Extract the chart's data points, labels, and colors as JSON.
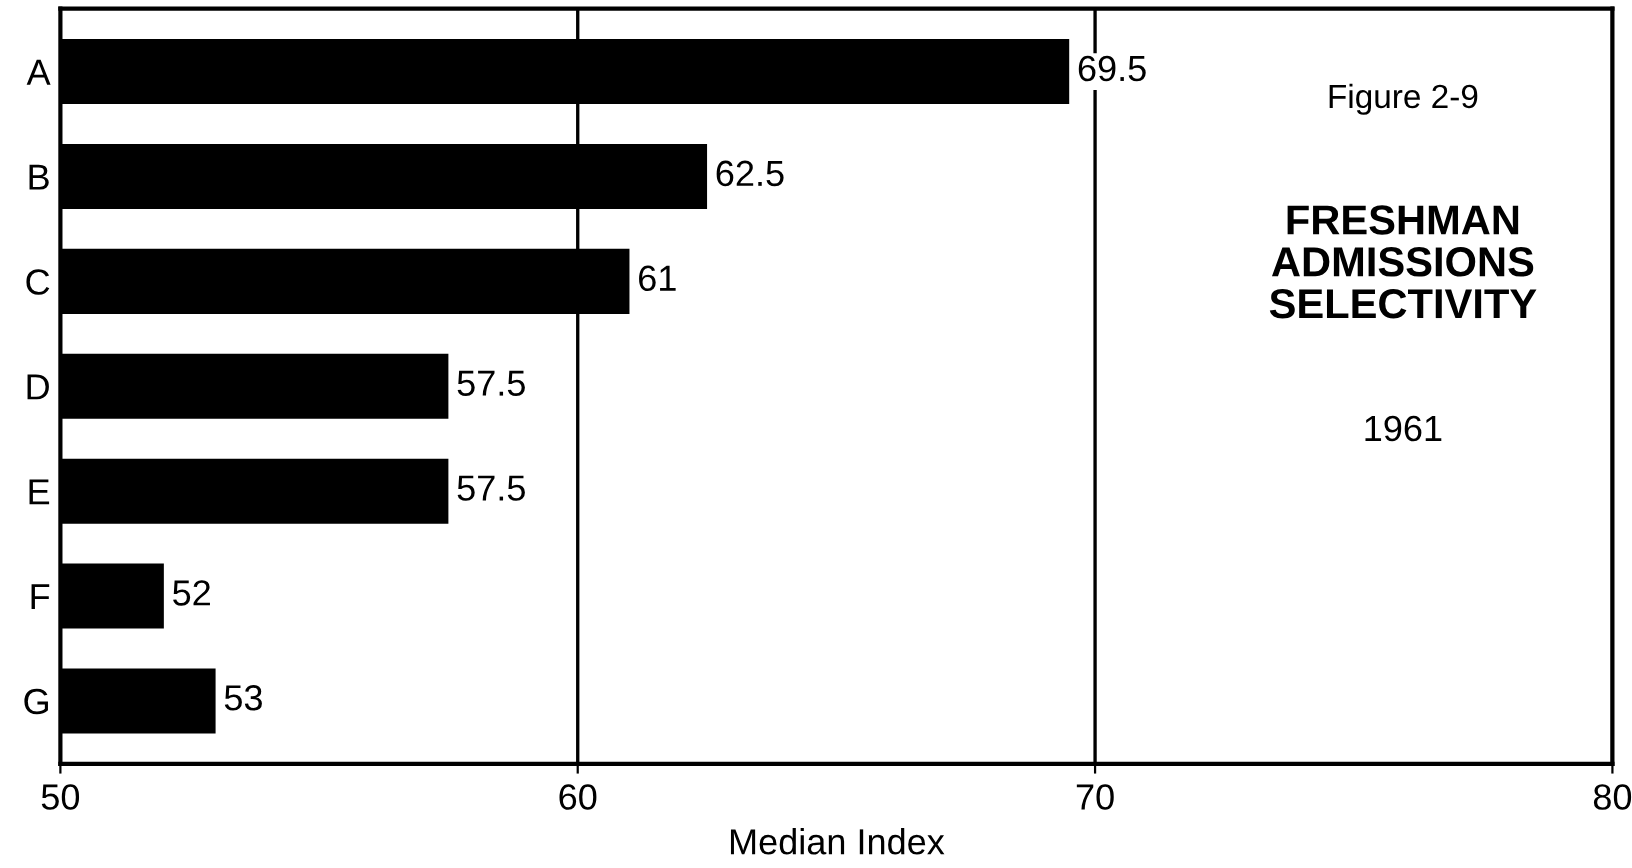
{
  "chart_data": {
    "type": "bar",
    "orientation": "horizontal",
    "title": "FRESHMAN ADMISSIONS SELECTIVITY",
    "subtitle": "1961",
    "annotations": [
      "Figure 2-9"
    ],
    "xlabel": "Median Index",
    "categories": [
      "A",
      "B",
      "C",
      "D",
      "E",
      "F",
      "G"
    ],
    "values": [
      69.5,
      62.5,
      61,
      57.5,
      57.5,
      52,
      53
    ],
    "color": "#000000",
    "xlim": [
      50,
      80
    ],
    "xticks": [
      50,
      60,
      70,
      80
    ],
    "grid": "x",
    "data_labels": true
  }
}
